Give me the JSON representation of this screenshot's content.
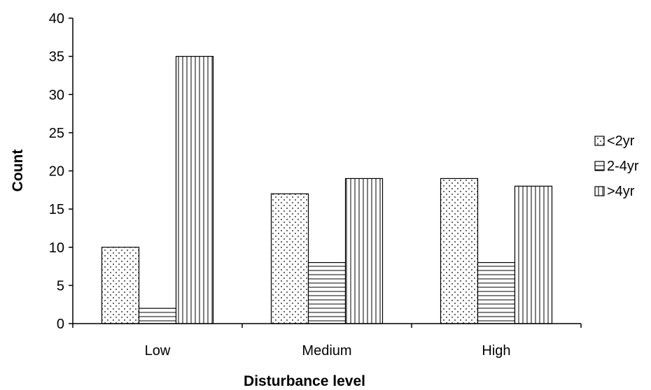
{
  "chart_data": {
    "type": "bar",
    "categories": [
      "Low",
      "Medium",
      "High"
    ],
    "series": [
      {
        "name": "<2yr",
        "values": [
          10,
          17,
          19
        ],
        "pattern": "dots"
      },
      {
        "name": "2-4yr",
        "values": [
          2,
          8,
          8
        ],
        "pattern": "horizontal-lines"
      },
      {
        "name": ">4yr",
        "values": [
          35,
          19,
          18
        ],
        "pattern": "vertical-lines"
      }
    ],
    "xlabel": "Disturbance level",
    "ylabel": "Count",
    "ylim": [
      0,
      40
    ],
    "yticks": [
      0,
      5,
      10,
      15,
      20,
      25,
      30,
      35,
      40
    ],
    "grid": false,
    "legend": "right",
    "colors": {
      "bar_fill": "#ffffff",
      "pattern": "#000000",
      "axis": "#000000"
    }
  }
}
